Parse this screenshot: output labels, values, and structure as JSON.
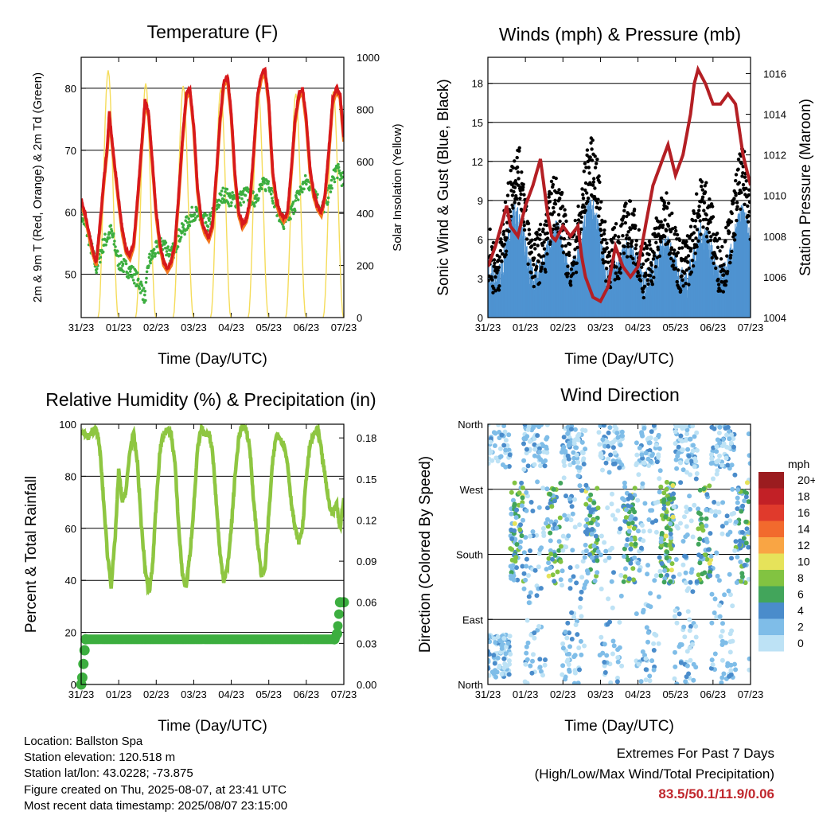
{
  "colors": {
    "temp_2m": "#d7191c",
    "temp_9m": "#f4791f",
    "dewpoint": "#3cae3f",
    "solar": "#f5dc5a",
    "wind": "#4f93d1",
    "gust": "#000000",
    "pressure": "#b41f24",
    "rh": "#8ec641",
    "precip": "#3cae3f",
    "extremes": "#c0272d"
  },
  "x_ticks": [
    "31/23",
    "01/23",
    "02/23",
    "03/23",
    "04/23",
    "05/23",
    "06/23",
    "07/23"
  ],
  "chart_data": [
    {
      "id": "temperature",
      "type": "line",
      "title": "Temperature (F)",
      "xlabel": "Time (Day/UTC)",
      "ylabel": "2m & 9m T (Red, Orange) & 2m Td (Green)",
      "y2label": "Solar Insolation (Yellow)",
      "xlim": [
        0,
        7
      ],
      "ylim": [
        43,
        85
      ],
      "y2lim": [
        0,
        1000
      ],
      "y_ticks": [
        50,
        60,
        70,
        80
      ],
      "y2_ticks": [
        0,
        200,
        400,
        600,
        800,
        1000
      ],
      "grid": true,
      "series": [
        {
          "key": "temp",
          "axis": "left",
          "x": [
            0,
            0.1,
            0.2,
            0.3,
            0.4,
            0.5,
            0.6,
            0.7,
            0.75,
            0.85,
            1.0,
            1.1,
            1.2,
            1.3,
            1.4,
            1.5,
            1.6,
            1.7,
            1.8,
            1.9,
            2.0,
            2.1,
            2.2,
            2.3,
            2.4,
            2.5,
            2.6,
            2.7,
            2.8,
            2.9,
            3.0,
            3.1,
            3.2,
            3.3,
            3.4,
            3.5,
            3.6,
            3.7,
            3.8,
            3.9,
            4.0,
            4.1,
            4.2,
            4.3,
            4.4,
            4.5,
            4.6,
            4.7,
            4.8,
            4.9,
            5.0,
            5.1,
            5.2,
            5.3,
            5.4,
            5.5,
            5.6,
            5.7,
            5.8,
            5.9,
            6.0,
            6.1,
            6.2,
            6.3,
            6.4,
            6.5,
            6.6,
            6.7,
            6.8,
            6.9,
            7.0
          ],
          "y": [
            62,
            60,
            57,
            54,
            52,
            58,
            65,
            71,
            76,
            70,
            62,
            57,
            54,
            53,
            55,
            62,
            70,
            78,
            76,
            68,
            60,
            55,
            52,
            51,
            52,
            55,
            63,
            72,
            79,
            80,
            74,
            64,
            59,
            57,
            56,
            58,
            66,
            75,
            81,
            82,
            76,
            66,
            60,
            58,
            59,
            62,
            70,
            79,
            82,
            83,
            78,
            67,
            62,
            60,
            59,
            60,
            67,
            75,
            79,
            80,
            75,
            67,
            63,
            61,
            60,
            63,
            70,
            78,
            80,
            79,
            72
          ]
        },
        {
          "key": "dewpoint",
          "axis": "left",
          "x": [
            0,
            0.2,
            0.4,
            0.5,
            0.6,
            0.8,
            1.0,
            1.2,
            1.4,
            1.6,
            1.7,
            1.8,
            2.0,
            2.2,
            2.4,
            2.6,
            2.8,
            3.0,
            3.2,
            3.4,
            3.6,
            3.8,
            4.0,
            4.2,
            4.4,
            4.6,
            4.8,
            5.0,
            5.2,
            5.4,
            5.6,
            5.8,
            6.0,
            6.2,
            6.4,
            6.6,
            6.8,
            7.0
          ],
          "y": [
            60,
            56,
            51,
            53,
            55,
            57,
            52,
            51,
            50,
            48,
            46,
            52,
            54,
            55,
            53,
            56,
            58,
            60,
            59,
            58,
            61,
            63,
            62,
            62,
            63,
            62,
            64,
            65,
            61,
            58,
            60,
            63,
            65,
            64,
            60,
            63,
            67,
            65
          ]
        },
        {
          "key": "solar",
          "axis": "right",
          "day_peaks": [
            0.72,
            1.72,
            2.72,
            3.72,
            4.72,
            5.72,
            6.72
          ],
          "peak_values": [
            950,
            900,
            890,
            880,
            870,
            860,
            870
          ]
        }
      ]
    },
    {
      "id": "winds",
      "type": "scatter",
      "title": "Winds (mph) & Pressure (mb)",
      "xlabel": "Time (Day/UTC)",
      "ylabel": "Sonic Wind & Gust (Blue, Black)",
      "y2label": "Station Pressure (Maroon)",
      "xlim": [
        0,
        7
      ],
      "ylim": [
        0,
        20
      ],
      "y2lim": [
        1004,
        1016.8
      ],
      "y_ticks": [
        0,
        3,
        6,
        9,
        12,
        15,
        18
      ],
      "y2_ticks": [
        1004,
        1006,
        1008,
        1010,
        1012,
        1014,
        1016
      ],
      "grid": true,
      "series": [
        {
          "key": "pressure",
          "axis": "right",
          "x": [
            0,
            0.2,
            0.4,
            0.5,
            0.6,
            0.8,
            1.0,
            1.2,
            1.4,
            1.6,
            1.7,
            1.8,
            2.0,
            2.2,
            2.4,
            2.5,
            2.6,
            2.8,
            3.0,
            3.2,
            3.4,
            3.6,
            3.8,
            4.0,
            4.2,
            4.4,
            4.6,
            4.8,
            5.0,
            5.2,
            5.4,
            5.5,
            5.6,
            5.8,
            6.0,
            6.2,
            6.4,
            6.6,
            6.8,
            7.0
          ],
          "y": [
            1006.5,
            1007.5,
            1008.8,
            1009.5,
            1008.5,
            1008.0,
            1009.5,
            1010.5,
            1011.8,
            1009.0,
            1008.0,
            1007.8,
            1008.5,
            1008.0,
            1008.5,
            1007.0,
            1006.0,
            1005.0,
            1004.8,
            1005.5,
            1007.5,
            1006.5,
            1006.0,
            1006.5,
            1008.5,
            1010.5,
            1011.5,
            1012.5,
            1011.0,
            1012.0,
            1014.0,
            1015.5,
            1016.2,
            1015.5,
            1014.5,
            1014.5,
            1015.0,
            1014.5,
            1012.0,
            1010.5
          ]
        },
        {
          "key": "wind_base",
          "axis": "left",
          "x": [
            0,
            0.5,
            1.0,
            1.5,
            2.0,
            2.5,
            3.0,
            3.5,
            4.0,
            4.5,
            5.0,
            5.5,
            6.0,
            6.5,
            7.0
          ],
          "y": [
            3,
            3.5,
            6,
            2,
            5,
            4,
            6,
            2,
            3,
            2.5,
            3,
            3,
            4,
            3,
            6
          ]
        }
      ]
    },
    {
      "id": "humidity",
      "type": "line",
      "title": "Relative Humidity (%) & Precipitation (in)",
      "xlabel": "Time (Day/UTC)",
      "ylabel": "Percent & Total Rainfall",
      "xlim": [
        0,
        7
      ],
      "ylim": [
        0,
        100
      ],
      "y2lim": [
        0,
        0.19
      ],
      "y_ticks": [
        0,
        20,
        40,
        60,
        80,
        100
      ],
      "y2_ticks": [
        "0.00",
        "0.03",
        "0.06",
        "0.09",
        "0.12",
        "0.15",
        "0.18"
      ],
      "grid": true,
      "series": [
        {
          "key": "rh",
          "axis": "left",
          "x": [
            0,
            0.1,
            0.2,
            0.3,
            0.4,
            0.5,
            0.6,
            0.7,
            0.8,
            0.9,
            1.0,
            1.1,
            1.2,
            1.3,
            1.4,
            1.5,
            1.6,
            1.7,
            1.8,
            1.9,
            2.0,
            2.1,
            2.2,
            2.3,
            2.4,
            2.5,
            2.6,
            2.7,
            2.8,
            2.9,
            3.0,
            3.1,
            3.2,
            3.3,
            3.4,
            3.5,
            3.6,
            3.7,
            3.8,
            3.9,
            4.0,
            4.1,
            4.2,
            4.3,
            4.4,
            4.5,
            4.6,
            4.7,
            4.8,
            4.9,
            5.0,
            5.1,
            5.2,
            5.3,
            5.4,
            5.5,
            5.6,
            5.7,
            5.8,
            5.9,
            6.0,
            6.1,
            6.2,
            6.3,
            6.4,
            6.5,
            6.6,
            6.7,
            6.8,
            6.9,
            7.0
          ],
          "y": [
            97,
            96,
            95,
            97,
            99,
            90,
            70,
            50,
            38,
            55,
            82,
            70,
            75,
            90,
            96,
            85,
            62,
            45,
            35,
            45,
            70,
            90,
            96,
            98,
            96,
            85,
            60,
            42,
            38,
            50,
            68,
            90,
            98,
            96,
            97,
            90,
            70,
            50,
            40,
            45,
            60,
            80,
            95,
            99,
            98,
            90,
            70,
            55,
            42,
            45,
            65,
            85,
            96,
            95,
            92,
            85,
            70,
            60,
            55,
            60,
            80,
            92,
            96,
            98,
            90,
            80,
            70,
            65,
            70,
            60,
            72
          ]
        },
        {
          "key": "precip",
          "axis": "right",
          "x": [
            0.0,
            0.03,
            0.06,
            0.09,
            0.12,
            6.75,
            6.82,
            6.9,
            7.0
          ],
          "y": [
            0.0,
            0.005,
            0.015,
            0.025,
            0.033,
            0.033,
            0.037,
            0.06,
            0.06
          ]
        }
      ]
    },
    {
      "id": "direction",
      "type": "scatter",
      "title": "Wind Direction",
      "xlabel": "Time (Day/UTC)",
      "ylabel": "Direction (Colored By Speed)",
      "xlim": [
        0,
        7
      ],
      "ylim": [
        0,
        360
      ],
      "y_ticks": [
        "North",
        "East",
        "South",
        "West",
        "North"
      ],
      "y_tick_values": [
        0,
        90,
        180,
        270,
        360
      ],
      "grid": true,
      "legend": {
        "position": "right",
        "title": "mph",
        "labels": [
          "20+",
          "18",
          "16",
          "14",
          "12",
          "10",
          "8",
          "6",
          "4",
          "2",
          "0"
        ],
        "colors": [
          "#9b1c1f",
          "#c22026",
          "#e03a2c",
          "#f26a2d",
          "#f9a544",
          "#e6e35a",
          "#82c341",
          "#42a55b",
          "#4a8ccb",
          "#7fbde8",
          "#bde2f5"
        ]
      }
    }
  ],
  "info": {
    "location": "Location: Ballston Spa",
    "elevation": "Station elevation: 120.518 m",
    "latlon": "Station lat/lon: 43.0228; -73.875",
    "created": "Figure created on Thu, 2025-08-07, at 23:41 UTC",
    "timestamp": "Most recent data timestamp: 2025/08/07 23:15:00"
  },
  "extremes": {
    "title": "Extremes For Past 7 Days",
    "subtitle": "(High/Low/Max Wind/Total Precipitation)",
    "values": "83.5/50.1/11.9/0.06"
  }
}
